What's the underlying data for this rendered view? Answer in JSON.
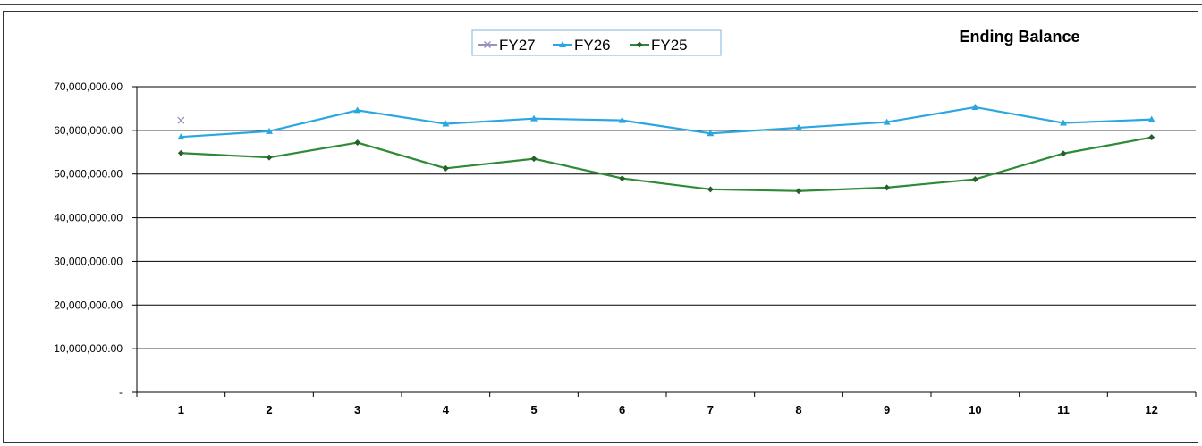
{
  "chart_data": {
    "type": "line",
    "title": "Ending Balance",
    "categories": [
      "1",
      "2",
      "3",
      "4",
      "5",
      "6",
      "7",
      "8",
      "9",
      "10",
      "11",
      "12"
    ],
    "ylim": [
      0,
      70000000
    ],
    "yticks": [
      0,
      10000000,
      20000000,
      30000000,
      40000000,
      50000000,
      60000000,
      70000000
    ],
    "ytick_labels": [
      "-",
      "10,000,000.00",
      "20,000,000.00",
      "30,000,000.00",
      "40,000,000.00",
      "50,000,000.00",
      "60,000,000.00",
      "70,000,000.00"
    ],
    "grid": true,
    "legend_position": "top-center",
    "series": [
      {
        "name": "FY27",
        "color": "#9b8fc0",
        "marker": "x",
        "values": [
          62300000,
          null,
          null,
          null,
          null,
          null,
          null,
          null,
          null,
          null,
          null,
          null
        ]
      },
      {
        "name": "FY26",
        "color": "#2aa7e0",
        "marker": "triangle",
        "values": [
          58500000,
          59800000,
          64600000,
          61500000,
          62700000,
          62300000,
          59300000,
          60600000,
          61900000,
          65300000,
          61700000,
          62500000
        ]
      },
      {
        "name": "FY25",
        "color": "#2e8b35",
        "marker": "diamond",
        "values": [
          54800000,
          53800000,
          57200000,
          51300000,
          53500000,
          49000000,
          46500000,
          46100000,
          46900000,
          48800000,
          54700000,
          58400000
        ]
      }
    ]
  }
}
